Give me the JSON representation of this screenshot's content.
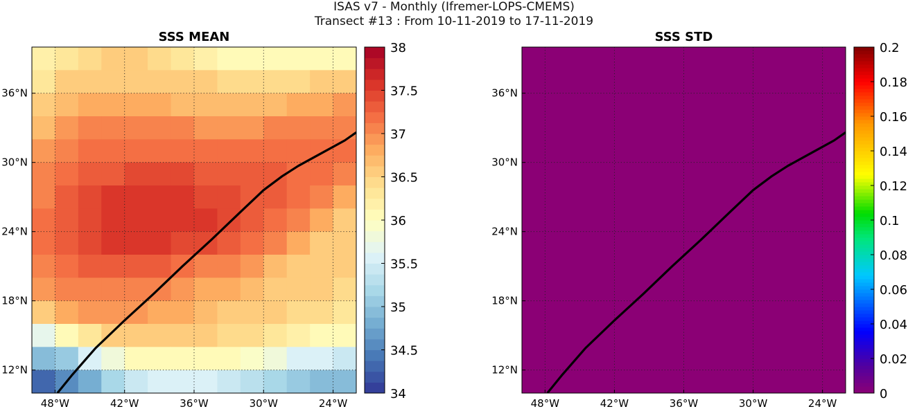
{
  "figure": {
    "title_line1": "ISAS v7 - Monthly (Ifremer-LOPS-CMEMS)",
    "title_line2": "Transect #13 : From 10-11-2019 to 17-11-2019"
  },
  "chart_data": [
    {
      "type": "heatmap",
      "title": "SSS MEAN",
      "xlabel": "",
      "ylabel": "",
      "xlim": [
        -50,
        -22
      ],
      "ylim": [
        10,
        40
      ],
      "xticks": [
        -48,
        -42,
        -36,
        -30,
        -24
      ],
      "xtick_labels": [
        "48°W",
        "42°W",
        "36°W",
        "30°W",
        "24°W"
      ],
      "yticks": [
        12,
        18,
        24,
        30,
        36
      ],
      "ytick_labels": [
        "12°N",
        "18°N",
        "24°N",
        "30°N",
        "36°N"
      ],
      "grid": true,
      "colorbar": {
        "vmin": 34,
        "vmax": 38,
        "levels": 32,
        "ticks": [
          34,
          34.5,
          35,
          35.5,
          36,
          36.5,
          37,
          37.5,
          38
        ],
        "tick_labels": [
          "34",
          "34.5",
          "35",
          "35.5",
          "36",
          "36.5",
          "37",
          "37.5",
          "38"
        ],
        "colormap": "RdYlBu_r"
      },
      "field_description_note": "",
      "field_rows": [
        {
          "lat": 39,
          "values": [
            36.2,
            36.3,
            36.4,
            36.5,
            36.5,
            36.4,
            36.3,
            36.2,
            36.1,
            36.1,
            36.0,
            36.0,
            36.0,
            36.1
          ]
        },
        {
          "lat": 37,
          "values": [
            36.3,
            36.5,
            36.6,
            36.6,
            36.6,
            36.6,
            36.5,
            36.5,
            36.4,
            36.4,
            36.4,
            36.4,
            36.5,
            36.6
          ]
        },
        {
          "lat": 35,
          "values": [
            36.5,
            36.7,
            36.8,
            36.8,
            36.8,
            36.8,
            36.7,
            36.7,
            36.7,
            36.7,
            36.7,
            36.8,
            36.8,
            36.9
          ]
        },
        {
          "lat": 33,
          "values": [
            36.7,
            36.9,
            37.0,
            37.0,
            37.0,
            37.0,
            37.0,
            36.9,
            36.9,
            36.9,
            37.0,
            37.0,
            37.1,
            37.1
          ]
        },
        {
          "lat": 31,
          "values": [
            36.9,
            37.1,
            37.2,
            37.2,
            37.2,
            37.2,
            37.2,
            37.2,
            37.2,
            37.2,
            37.2,
            37.2,
            37.2,
            37.2
          ]
        },
        {
          "lat": 29,
          "values": [
            37.0,
            37.2,
            37.3,
            37.3,
            37.4,
            37.4,
            37.4,
            37.3,
            37.3,
            37.3,
            37.3,
            37.2,
            37.2,
            37.0
          ]
        },
        {
          "lat": 27,
          "values": [
            37.1,
            37.3,
            37.4,
            37.5,
            37.5,
            37.5,
            37.5,
            37.4,
            37.4,
            37.3,
            37.3,
            37.2,
            37.0,
            36.8
          ]
        },
        {
          "lat": 25,
          "values": [
            37.2,
            37.3,
            37.4,
            37.5,
            37.6,
            37.6,
            37.6,
            37.5,
            37.4,
            37.3,
            37.2,
            37.0,
            36.8,
            36.6
          ]
        },
        {
          "lat": 23,
          "values": [
            37.2,
            37.3,
            37.4,
            37.5,
            37.5,
            37.5,
            37.4,
            37.4,
            37.3,
            37.2,
            37.0,
            36.8,
            36.6,
            36.5
          ]
        },
        {
          "lat": 21,
          "values": [
            37.0,
            37.2,
            37.3,
            37.3,
            37.3,
            37.3,
            37.2,
            37.1,
            37.0,
            36.9,
            36.7,
            36.6,
            36.5,
            36.5
          ]
        },
        {
          "lat": 19,
          "values": [
            36.9,
            37.0,
            37.1,
            37.1,
            37.1,
            37.0,
            36.9,
            36.8,
            36.8,
            36.7,
            36.6,
            36.5,
            36.5,
            36.4
          ]
        },
        {
          "lat": 17,
          "values": [
            36.6,
            36.8,
            36.9,
            36.9,
            36.9,
            36.8,
            36.8,
            36.7,
            36.6,
            36.6,
            36.5,
            36.4,
            36.4,
            36.3
          ]
        },
        {
          "lat": 15,
          "values": [
            35.7,
            36.0,
            36.3,
            36.5,
            36.6,
            36.6,
            36.6,
            36.5,
            36.4,
            36.4,
            36.3,
            36.2,
            36.1,
            36.0
          ]
        },
        {
          "lat": 13,
          "values": [
            34.9,
            35.1,
            35.5,
            35.8,
            36.0,
            36.1,
            36.1,
            36.0,
            36.0,
            35.9,
            35.8,
            35.6,
            35.5,
            35.4
          ]
        },
        {
          "lat": 11,
          "values": [
            34.3,
            34.5,
            34.8,
            35.2,
            35.4,
            35.6,
            35.6,
            35.5,
            35.4,
            35.3,
            35.2,
            35.0,
            34.9,
            34.9
          ]
        }
      ],
      "field_lons": [
        -49,
        -47,
        -45,
        -43,
        -41,
        -39,
        -37,
        -35,
        -33,
        -31,
        -29,
        -27,
        -25,
        -23
      ],
      "transect": {
        "lon": [
          -47.8,
          -46.5,
          -44.5,
          -42.0,
          -39.5,
          -37.0,
          -34.5,
          -32.0,
          -30.0,
          -28.4,
          -27.0,
          -25.0,
          -23.0,
          -22.0
        ],
        "lat": [
          10.0,
          11.6,
          13.9,
          16.3,
          18.6,
          21.0,
          23.3,
          25.7,
          27.6,
          28.8,
          29.7,
          30.8,
          31.9,
          32.6
        ]
      }
    },
    {
      "type": "heatmap",
      "title": "SSS STD",
      "xlabel": "",
      "ylabel": "",
      "xlim": [
        -50,
        -22
      ],
      "ylim": [
        10,
        40
      ],
      "xticks": [
        -48,
        -42,
        -36,
        -30,
        -24
      ],
      "xtick_labels": [
        "48°W",
        "42°W",
        "36°W",
        "30°W",
        "24°W"
      ],
      "yticks": [
        12,
        18,
        24,
        30,
        36
      ],
      "ytick_labels": [
        "12°N",
        "18°N",
        "24°N",
        "30°N",
        "36°N"
      ],
      "grid": true,
      "field_uniform_value": 0,
      "colorbar": {
        "vmin": 0,
        "vmax": 0.2,
        "ticks": [
          0,
          0.02,
          0.04,
          0.06,
          0.08,
          0.1,
          0.12,
          0.14,
          0.16,
          0.18,
          0.2
        ],
        "tick_labels": [
          "0",
          "0.02",
          "0.04",
          "0.06",
          "0.08",
          "0.1",
          "0.12",
          "0.14",
          "0.16",
          "0.18",
          "0.2"
        ],
        "colormap": "jet-like",
        "background_color": "#8b0075"
      },
      "transect": {
        "lon": [
          -47.8,
          -46.5,
          -44.5,
          -42.0,
          -39.5,
          -37.0,
          -34.5,
          -32.0,
          -30.0,
          -28.4,
          -27.0,
          -25.0,
          -23.0,
          -22.0
        ],
        "lat": [
          10.0,
          11.6,
          13.9,
          16.3,
          18.6,
          21.0,
          23.3,
          25.7,
          27.6,
          28.8,
          29.7,
          30.8,
          31.9,
          32.6
        ]
      }
    }
  ],
  "colors": {
    "transect_line": "#000000",
    "std_fill": "#8b0075"
  }
}
